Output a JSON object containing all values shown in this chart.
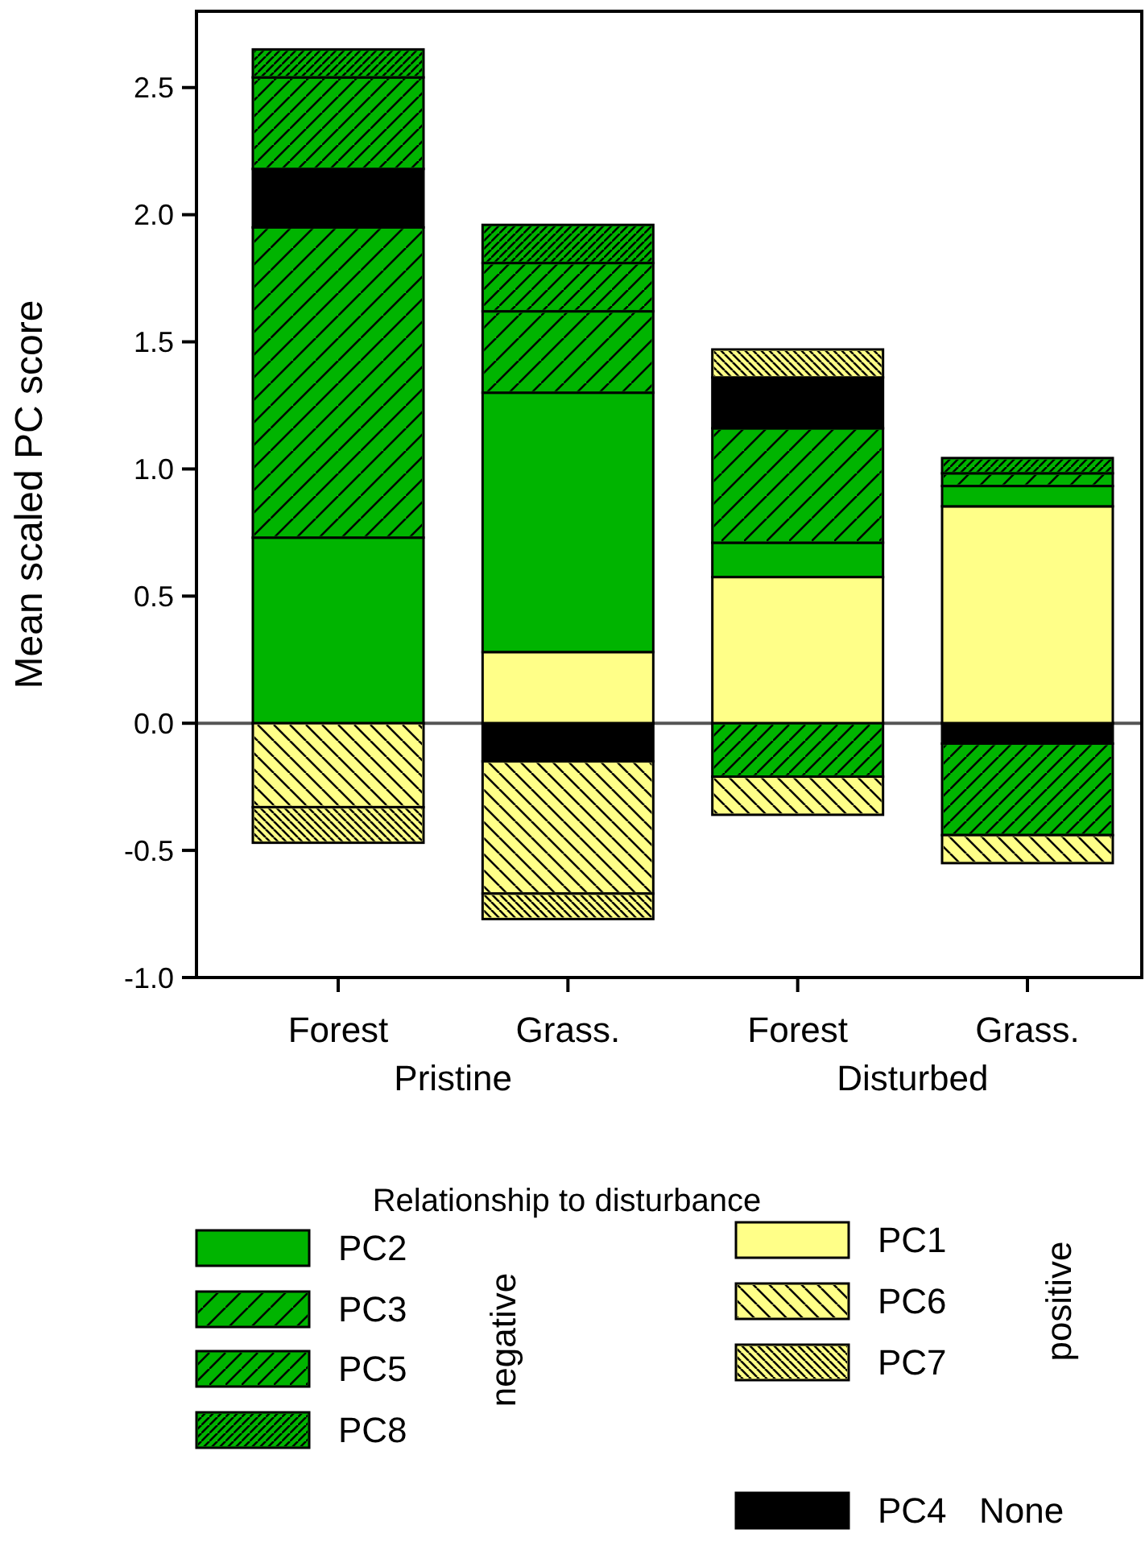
{
  "chart_data": {
    "type": "bar",
    "stacked": true,
    "ylabel": "Mean scaled PC score",
    "legend_title": "Relationship to disturbance",
    "categories": [
      "Forest",
      "Grass.",
      "Forest",
      "Grass."
    ],
    "series": [
      {
        "name": "PC1",
        "color": "#ffff88",
        "values": [
          null,
          0.28,
          0.575,
          0.853
        ]
      },
      {
        "name": "PC2",
        "color": "#00b400",
        "values": [
          0.73,
          1.02,
          0.135,
          0.08
        ]
      },
      {
        "name": "PC3",
        "color": "#00b400",
        "values": [
          1.22,
          0.32,
          0.45,
          0.05
        ]
      },
      {
        "name": "PC4",
        "color": "#000000",
        "values": [
          0.23,
          -0.15,
          0.2,
          -0.08
        ]
      },
      {
        "name": "PC5",
        "color": "#00b400",
        "values": [
          0.36,
          0.19,
          -0.21,
          -0.36
        ]
      },
      {
        "name": "PC6",
        "color": "#ffff88",
        "values": [
          -0.33,
          -0.52,
          -0.15,
          -0.11
        ]
      },
      {
        "name": "PC7",
        "color": "#ffff88",
        "values": [
          -0.14,
          -0.1,
          0.11,
          null
        ]
      },
      {
        "name": "PC8",
        "color": "#00b400",
        "values": [
          0.11,
          0.15,
          null,
          0.06
        ]
      }
    ],
    "ylim": [
      -1.0,
      2.8
    ],
    "yticks": [
      {
        "value": -1,
        "label": "-1.0"
      },
      {
        "value": -0.5,
        "label": "-0.5"
      },
      {
        "value": 0,
        "label": "0.0"
      },
      {
        "value": 0.5,
        "label": "0.5"
      },
      {
        "value": 1,
        "label": "1.0"
      },
      {
        "value": 1.5,
        "label": "1.5"
      },
      {
        "value": 2,
        "label": "2.0"
      },
      {
        "value": 2.5,
        "label": "2.5"
      }
    ],
    "ref_lines": [
      {
        "axis": "y",
        "value": 0,
        "color": "#555555"
      }
    ],
    "annotations": [
      "Pristine",
      "Disturbed",
      "negative",
      "positive",
      "None"
    ],
    "legend": "bottom",
    "grid": false
  }
}
